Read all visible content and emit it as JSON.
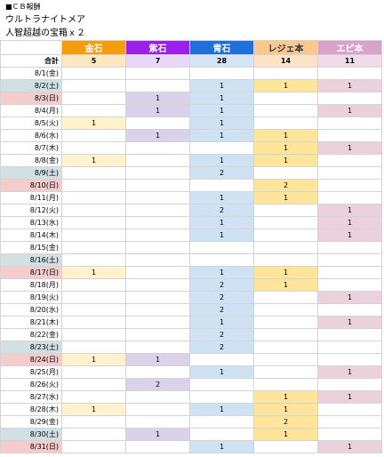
{
  "sheet": {
    "title_lines": [
      "■ＣＢ報酬",
      "ウルトラナイトメア",
      "人智超越の宝箱ｘ２"
    ],
    "columns": [
      "金石",
      "紫石",
      "青石",
      "レジェ本",
      "エピ本"
    ],
    "total_label": "合計",
    "totals": [
      5,
      7,
      28,
      14,
      11
    ],
    "rows": [
      {
        "date": "8/1(金)",
        "values": [
          null,
          null,
          null,
          null,
          null
        ]
      },
      {
        "date": "8/2(土)",
        "values": [
          null,
          null,
          1,
          1,
          1
        ]
      },
      {
        "date": "8/3(日)",
        "values": [
          null,
          1,
          1,
          null,
          null
        ]
      },
      {
        "date": "8/4(月)",
        "values": [
          null,
          1,
          1,
          null,
          1
        ]
      },
      {
        "date": "8/5(火)",
        "values": [
          1,
          null,
          1,
          null,
          null
        ]
      },
      {
        "date": "8/6(水)",
        "values": [
          null,
          1,
          1,
          1,
          null
        ]
      },
      {
        "date": "8/7(木)",
        "values": [
          null,
          null,
          null,
          1,
          1
        ]
      },
      {
        "date": "8/8(金)",
        "values": [
          1,
          null,
          1,
          1,
          null
        ]
      },
      {
        "date": "8/9(土)",
        "values": [
          null,
          null,
          2,
          null,
          null
        ]
      },
      {
        "date": "8/10(日)",
        "values": [
          null,
          null,
          null,
          2,
          null
        ]
      },
      {
        "date": "8/11(月)",
        "values": [
          null,
          null,
          1,
          1,
          null
        ]
      },
      {
        "date": "8/12(火)",
        "values": [
          null,
          null,
          2,
          null,
          1
        ]
      },
      {
        "date": "8/13(水)",
        "values": [
          null,
          null,
          1,
          null,
          1
        ]
      },
      {
        "date": "8/14(木)",
        "values": [
          null,
          null,
          1,
          null,
          1
        ]
      },
      {
        "date": "8/15(金)",
        "values": [
          null,
          null,
          null,
          null,
          null
        ]
      },
      {
        "date": "8/16(土)",
        "values": [
          null,
          null,
          null,
          null,
          null
        ]
      },
      {
        "date": "8/17(日)",
        "values": [
          1,
          null,
          1,
          1,
          null
        ]
      },
      {
        "date": "8/18(月)",
        "values": [
          null,
          null,
          2,
          1,
          null
        ]
      },
      {
        "date": "8/19(火)",
        "values": [
          null,
          null,
          2,
          null,
          1
        ]
      },
      {
        "date": "8/20(水)",
        "values": [
          null,
          null,
          2,
          null,
          null
        ]
      },
      {
        "date": "8/21(木)",
        "values": [
          null,
          null,
          1,
          null,
          1
        ]
      },
      {
        "date": "8/22(金)",
        "values": [
          null,
          null,
          2,
          null,
          null
        ]
      },
      {
        "date": "8/23(土)",
        "values": [
          null,
          null,
          2,
          null,
          null
        ]
      },
      {
        "date": "8/24(日)",
        "values": [
          1,
          1,
          null,
          null,
          null
        ]
      },
      {
        "date": "8/25(月)",
        "values": [
          null,
          null,
          1,
          null,
          1
        ]
      },
      {
        "date": "8/26(火)",
        "values": [
          null,
          2,
          null,
          null,
          null
        ]
      },
      {
        "date": "8/27(水)",
        "values": [
          null,
          null,
          null,
          1,
          1
        ]
      },
      {
        "date": "8/28(木)",
        "values": [
          1,
          null,
          1,
          1,
          null
        ]
      },
      {
        "date": "8/29(金)",
        "values": [
          null,
          null,
          null,
          2,
          null
        ]
      },
      {
        "date": "8/30(土)",
        "values": [
          null,
          1,
          null,
          1,
          null
        ]
      },
      {
        "date": "8/31(日)",
        "values": [
          null,
          null,
          1,
          null,
          1
        ]
      }
    ]
  }
}
